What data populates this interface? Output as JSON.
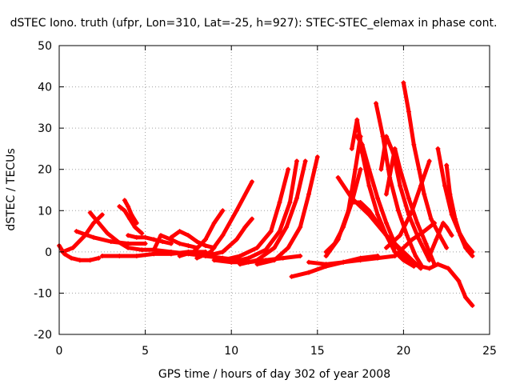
{
  "chart_data": {
    "type": "scatter",
    "title": "dSTEC Iono. truth (ufpr, Lon=310, Lat=-25, h=927): STEC-STEC_elemax in phase cont.",
    "xlabel": "GPS time / hours of day 302 of year 2008",
    "ylabel": "dSTEC  / TECUs",
    "xlim": [
      0,
      25
    ],
    "ylim": [
      -20,
      50
    ],
    "xticks": [
      "0",
      "5",
      "10",
      "15",
      "20",
      "25"
    ],
    "yticks": [
      "-20",
      "-10",
      "0",
      "10",
      "20",
      "30",
      "40",
      "50"
    ],
    "grid": true,
    "marker": "+",
    "color": "#ff0000",
    "series": [
      {
        "x": [
          0.0,
          0.3,
          0.7,
          1.2,
          1.8,
          2.3
        ],
        "y": [
          1.5,
          -0.5,
          -1.5,
          -2.0,
          -2.0,
          -1.5
        ]
      },
      {
        "x": [
          0.2,
          0.8,
          1.5,
          2.0,
          2.5
        ],
        "y": [
          0.0,
          1.0,
          4.0,
          7.0,
          9.0
        ]
      },
      {
        "x": [
          1.8,
          2.3,
          2.8,
          3.4,
          4.0,
          4.8,
          5.5
        ],
        "y": [
          9.5,
          7.0,
          4.5,
          2.5,
          1.0,
          0.5,
          0.5
        ]
      },
      {
        "x": [
          1.0,
          2.0,
          3.0,
          4.0,
          5.0
        ],
        "y": [
          5.0,
          3.5,
          2.5,
          2.0,
          2.0
        ]
      },
      {
        "x": [
          3.5,
          3.8,
          4.1,
          4.4,
          4.8
        ],
        "y": [
          11.0,
          10.0,
          8.0,
          6.0,
          4.5
        ]
      },
      {
        "x": [
          3.8,
          4.0,
          4.2,
          4.5
        ],
        "y": [
          12.5,
          11.0,
          9.0,
          7.0
        ]
      },
      {
        "x": [
          4.0,
          4.5,
          5.0,
          5.5,
          6.0,
          6.5
        ],
        "y": [
          4.0,
          3.5,
          3.5,
          3.0,
          2.5,
          2.0
        ]
      },
      {
        "x": [
          2.5,
          3.5,
          4.5,
          5.5,
          6.5,
          7.5,
          8.5
        ],
        "y": [
          -1.0,
          -1.0,
          -1.0,
          -0.5,
          -0.5,
          0.0,
          0.0
        ]
      },
      {
        "x": [
          5.5,
          5.9,
          6.5,
          7.0,
          7.5,
          8.0
        ],
        "y": [
          0.5,
          4.0,
          3.0,
          2.0,
          1.5,
          1.0
        ]
      },
      {
        "x": [
          6.5,
          7.0,
          7.5,
          8.0,
          8.5,
          9.0
        ],
        "y": [
          3.5,
          5.0,
          4.0,
          2.5,
          1.5,
          1.0
        ]
      },
      {
        "x": [
          5.5,
          6.5,
          7.5,
          8.5,
          9.5,
          10.5
        ],
        "y": [
          0.5,
          0.0,
          -0.5,
          -1.0,
          -1.5,
          -2.0
        ]
      },
      {
        "x": [
          7.0,
          7.8,
          8.5,
          9.0,
          9.5
        ],
        "y": [
          -1.0,
          0.0,
          3.0,
          7.0,
          10.0
        ]
      },
      {
        "x": [
          8.0,
          8.8,
          9.5,
          10.3,
          11.2
        ],
        "y": [
          -1.5,
          0.0,
          4.0,
          10.0,
          17.0
        ]
      },
      {
        "x": [
          9.0,
          10.0,
          11.0,
          12.0,
          13.0,
          14.0
        ],
        "y": [
          -2.0,
          -2.5,
          -2.5,
          -2.0,
          -1.5,
          -1.0
        ]
      },
      {
        "x": [
          8.5,
          9.5,
          10.3,
          10.8,
          11.2
        ],
        "y": [
          -1.0,
          0.0,
          3.0,
          6.0,
          8.0
        ]
      },
      {
        "x": [
          9.5,
          10.5,
          11.5,
          12.3,
          12.8,
          13.3
        ],
        "y": [
          -2.0,
          -1.0,
          1.0,
          5.0,
          12.0,
          20.0
        ]
      },
      {
        "x": [
          10.0,
          11.0,
          12.0,
          12.8,
          13.4,
          13.8
        ],
        "y": [
          -2.5,
          -1.5,
          0.5,
          5.0,
          12.0,
          22.0
        ]
      },
      {
        "x": [
          10.5,
          11.5,
          12.5,
          13.2,
          13.8,
          14.3
        ],
        "y": [
          -3.0,
          -2.0,
          1.0,
          6.0,
          13.0,
          22.0
        ]
      },
      {
        "x": [
          11.5,
          12.5,
          13.3,
          14.0,
          14.5,
          15.0
        ],
        "y": [
          -3.0,
          -2.0,
          1.0,
          6.0,
          14.0,
          23.0
        ]
      },
      {
        "x": [
          13.5,
          14.5,
          15.5,
          16.5,
          17.5,
          18.5
        ],
        "y": [
          -6.0,
          -5.0,
          -3.5,
          -2.5,
          -1.5,
          -1.0
        ]
      },
      {
        "x": [
          14.5,
          15.5,
          16.5,
          17.5,
          18.5,
          19.5
        ],
        "y": [
          -2.5,
          -3.0,
          -2.5,
          -2.0,
          -1.5,
          -1.0
        ]
      },
      {
        "x": [
          15.5,
          16.0,
          16.5,
          17.0,
          17.5
        ],
        "y": [
          0.0,
          2.0,
          6.0,
          12.0,
          20.0
        ]
      },
      {
        "x": [
          15.5,
          16.2,
          16.8,
          17.2,
          17.5
        ],
        "y": [
          -1.0,
          3.0,
          10.0,
          20.0,
          28.0
        ]
      },
      {
        "x": [
          17.0,
          17.3,
          17.6,
          18.0,
          18.5,
          19.0,
          19.5,
          20.0,
          20.6
        ],
        "y": [
          25.0,
          32.0,
          24.0,
          16.0,
          9.0,
          4.0,
          0.0,
          -2.0,
          -3.5
        ]
      },
      {
        "x": [
          17.3,
          17.6,
          18.0,
          18.5,
          19.0,
          19.5,
          20.0,
          20.5
        ],
        "y": [
          28.0,
          26.0,
          20.0,
          13.0,
          7.0,
          2.0,
          -1.0,
          -3.0
        ]
      },
      {
        "x": [
          16.2,
          17.0,
          18.0,
          19.0,
          20.0,
          21.0
        ],
        "y": [
          18.0,
          13.0,
          9.0,
          4.0,
          0.0,
          -4.0
        ]
      },
      {
        "x": [
          17.0,
          17.5,
          18.0,
          18.5,
          19.0,
          19.5
        ],
        "y": [
          12.0,
          12.0,
          10.0,
          7.0,
          4.0,
          1.0
        ]
      },
      {
        "x": [
          18.4,
          18.8,
          19.2,
          19.7,
          20.2,
          20.7,
          21.0
        ],
        "y": [
          36.0,
          28.0,
          18.0,
          10.0,
          4.0,
          -1.0,
          -3.0
        ]
      },
      {
        "x": [
          18.7,
          19.0,
          19.4,
          19.8,
          20.3,
          20.9,
          21.5
        ],
        "y": [
          20.0,
          28.0,
          24.0,
          16.0,
          9.0,
          3.0,
          -2.0
        ]
      },
      {
        "x": [
          19.0,
          19.5,
          19.8,
          20.3,
          20.8,
          21.3,
          21.8
        ],
        "y": [
          14.0,
          25.0,
          20.0,
          13.0,
          7.0,
          2.0,
          -3.0
        ]
      },
      {
        "x": [
          20.0,
          20.3,
          20.6,
          20.9,
          21.2,
          21.6,
          22.1,
          22.5
        ],
        "y": [
          41.0,
          34.0,
          26.0,
          20.0,
          14.0,
          8.0,
          4.0,
          1.0
        ]
      },
      {
        "x": [
          19.0,
          19.8,
          20.5,
          21.0,
          21.5
        ],
        "y": [
          1.0,
          4.0,
          10.0,
          16.0,
          22.0
        ]
      },
      {
        "x": [
          19.5,
          20.5,
          21.2,
          21.8
        ],
        "y": [
          -1.0,
          3.0,
          5.0,
          7.0
        ]
      },
      {
        "x": [
          21.5,
          21.9,
          22.3,
          22.5,
          22.8
        ],
        "y": [
          -1.0,
          3.0,
          7.0,
          6.0,
          4.0
        ]
      },
      {
        "x": [
          20.5,
          21.5,
          22.0,
          22.6,
          23.2,
          23.6,
          24.0
        ],
        "y": [
          -3.0,
          -4.0,
          -3.0,
          -4.0,
          -7.0,
          -11.0,
          -13.0
        ]
      },
      {
        "x": [
          22.0,
          22.4,
          22.8,
          23.2,
          23.6,
          24.0
        ],
        "y": [
          25.0,
          16.0,
          9.0,
          5.0,
          2.0,
          0.0
        ]
      },
      {
        "x": [
          22.5,
          22.7,
          23.0,
          23.3,
          23.6,
          24.0
        ],
        "y": [
          21.0,
          14.0,
          8.0,
          4.0,
          1.0,
          -1.0
        ]
      }
    ]
  }
}
